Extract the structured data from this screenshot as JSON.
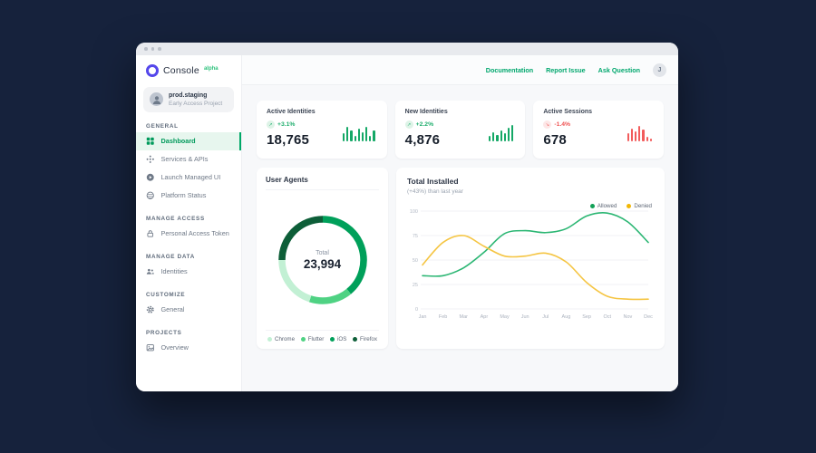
{
  "brand": {
    "name": "Console",
    "badge": "alpha"
  },
  "project": {
    "name": "prod.staging",
    "subtitle": "Early Access Project"
  },
  "sidebar": {
    "sections": [
      {
        "label": "GENERAL",
        "items": [
          {
            "label": "Dashboard",
            "active": true
          },
          {
            "label": "Services & APIs"
          },
          {
            "label": "Launch Managed UI"
          },
          {
            "label": "Platform Status"
          }
        ]
      },
      {
        "label": "MANAGE ACCESS",
        "items": [
          {
            "label": "Personal Access Token"
          }
        ]
      },
      {
        "label": "MANAGE DATA",
        "items": [
          {
            "label": "Identities"
          }
        ]
      },
      {
        "label": "CUSTOMIZE",
        "items": [
          {
            "label": "General"
          }
        ]
      },
      {
        "label": "PROJECTS",
        "items": [
          {
            "label": "Overview"
          }
        ]
      }
    ]
  },
  "header": {
    "links": [
      {
        "label": "Documentation"
      },
      {
        "label": "Report Issue"
      },
      {
        "label": "Ask Question"
      }
    ],
    "avatar_initial": "J"
  },
  "stats": [
    {
      "title": "Active Identities",
      "change": "+3.1%",
      "direction": "up",
      "value": "18,765",
      "spark": [
        9,
        16,
        12,
        6,
        14,
        10,
        16,
        6,
        12
      ],
      "spark_color": "#14a866"
    },
    {
      "title": "New Identities",
      "change": "+2.2%",
      "direction": "up",
      "value": "4,876",
      "spark": [
        6,
        10,
        7,
        12,
        9,
        15,
        18
      ],
      "spark_color": "#14a866"
    },
    {
      "title": "Active Sessions",
      "change": "-1.4%",
      "direction": "down",
      "value": "678",
      "spark": [
        9,
        14,
        11,
        17,
        13,
        5,
        3
      ],
      "spark_color": "#f25c5c"
    }
  ],
  "chart_data": [
    {
      "type": "pie",
      "variant": "donut",
      "title": "User Agents",
      "center_label": "Total",
      "center_value": "23,994",
      "start_angle": "9-oclock-clockwise",
      "segments": [
        {
          "label": "Firefox",
          "percent": 25,
          "color": "#0d5e38"
        },
        {
          "label": "iOS",
          "percent": 39,
          "color": "#00a05a"
        },
        {
          "label": "Flutter",
          "percent": 16,
          "color": "#4fd283"
        },
        {
          "label": "Chrome",
          "percent": 20,
          "color": "#c2f0d4"
        }
      ],
      "legend": [
        {
          "label": "Chrome",
          "color": "#c2f0d4"
        },
        {
          "label": "Flutter",
          "color": "#4fd283"
        },
        {
          "label": "iOS",
          "color": "#00a05a"
        },
        {
          "label": "Firefox",
          "color": "#0d5e38"
        }
      ]
    },
    {
      "type": "line",
      "title": "Total Installed",
      "subtitle": "(+43%) than last year",
      "categories": [
        "Jan",
        "Feb",
        "Mar",
        "Apr",
        "May",
        "Jun",
        "Jul",
        "Aug",
        "Sep",
        "Oct",
        "Nov",
        "Dec"
      ],
      "ylim": [
        0,
        100
      ],
      "yticks": [
        0,
        25,
        50,
        75,
        100
      ],
      "grid": true,
      "legend_position": "top-right",
      "series": [
        {
          "name": "Allowed",
          "color": "#2bb673",
          "dot_color": "#12a157",
          "values": [
            34,
            34,
            42,
            58,
            77,
            80,
            78,
            82,
            95,
            98,
            89,
            68
          ]
        },
        {
          "name": "Denied",
          "color": "#f5c543",
          "dot_color": "#f2b705",
          "values": [
            45,
            68,
            75,
            64,
            54,
            54,
            57,
            48,
            27,
            13,
            10,
            10
          ]
        }
      ]
    }
  ]
}
